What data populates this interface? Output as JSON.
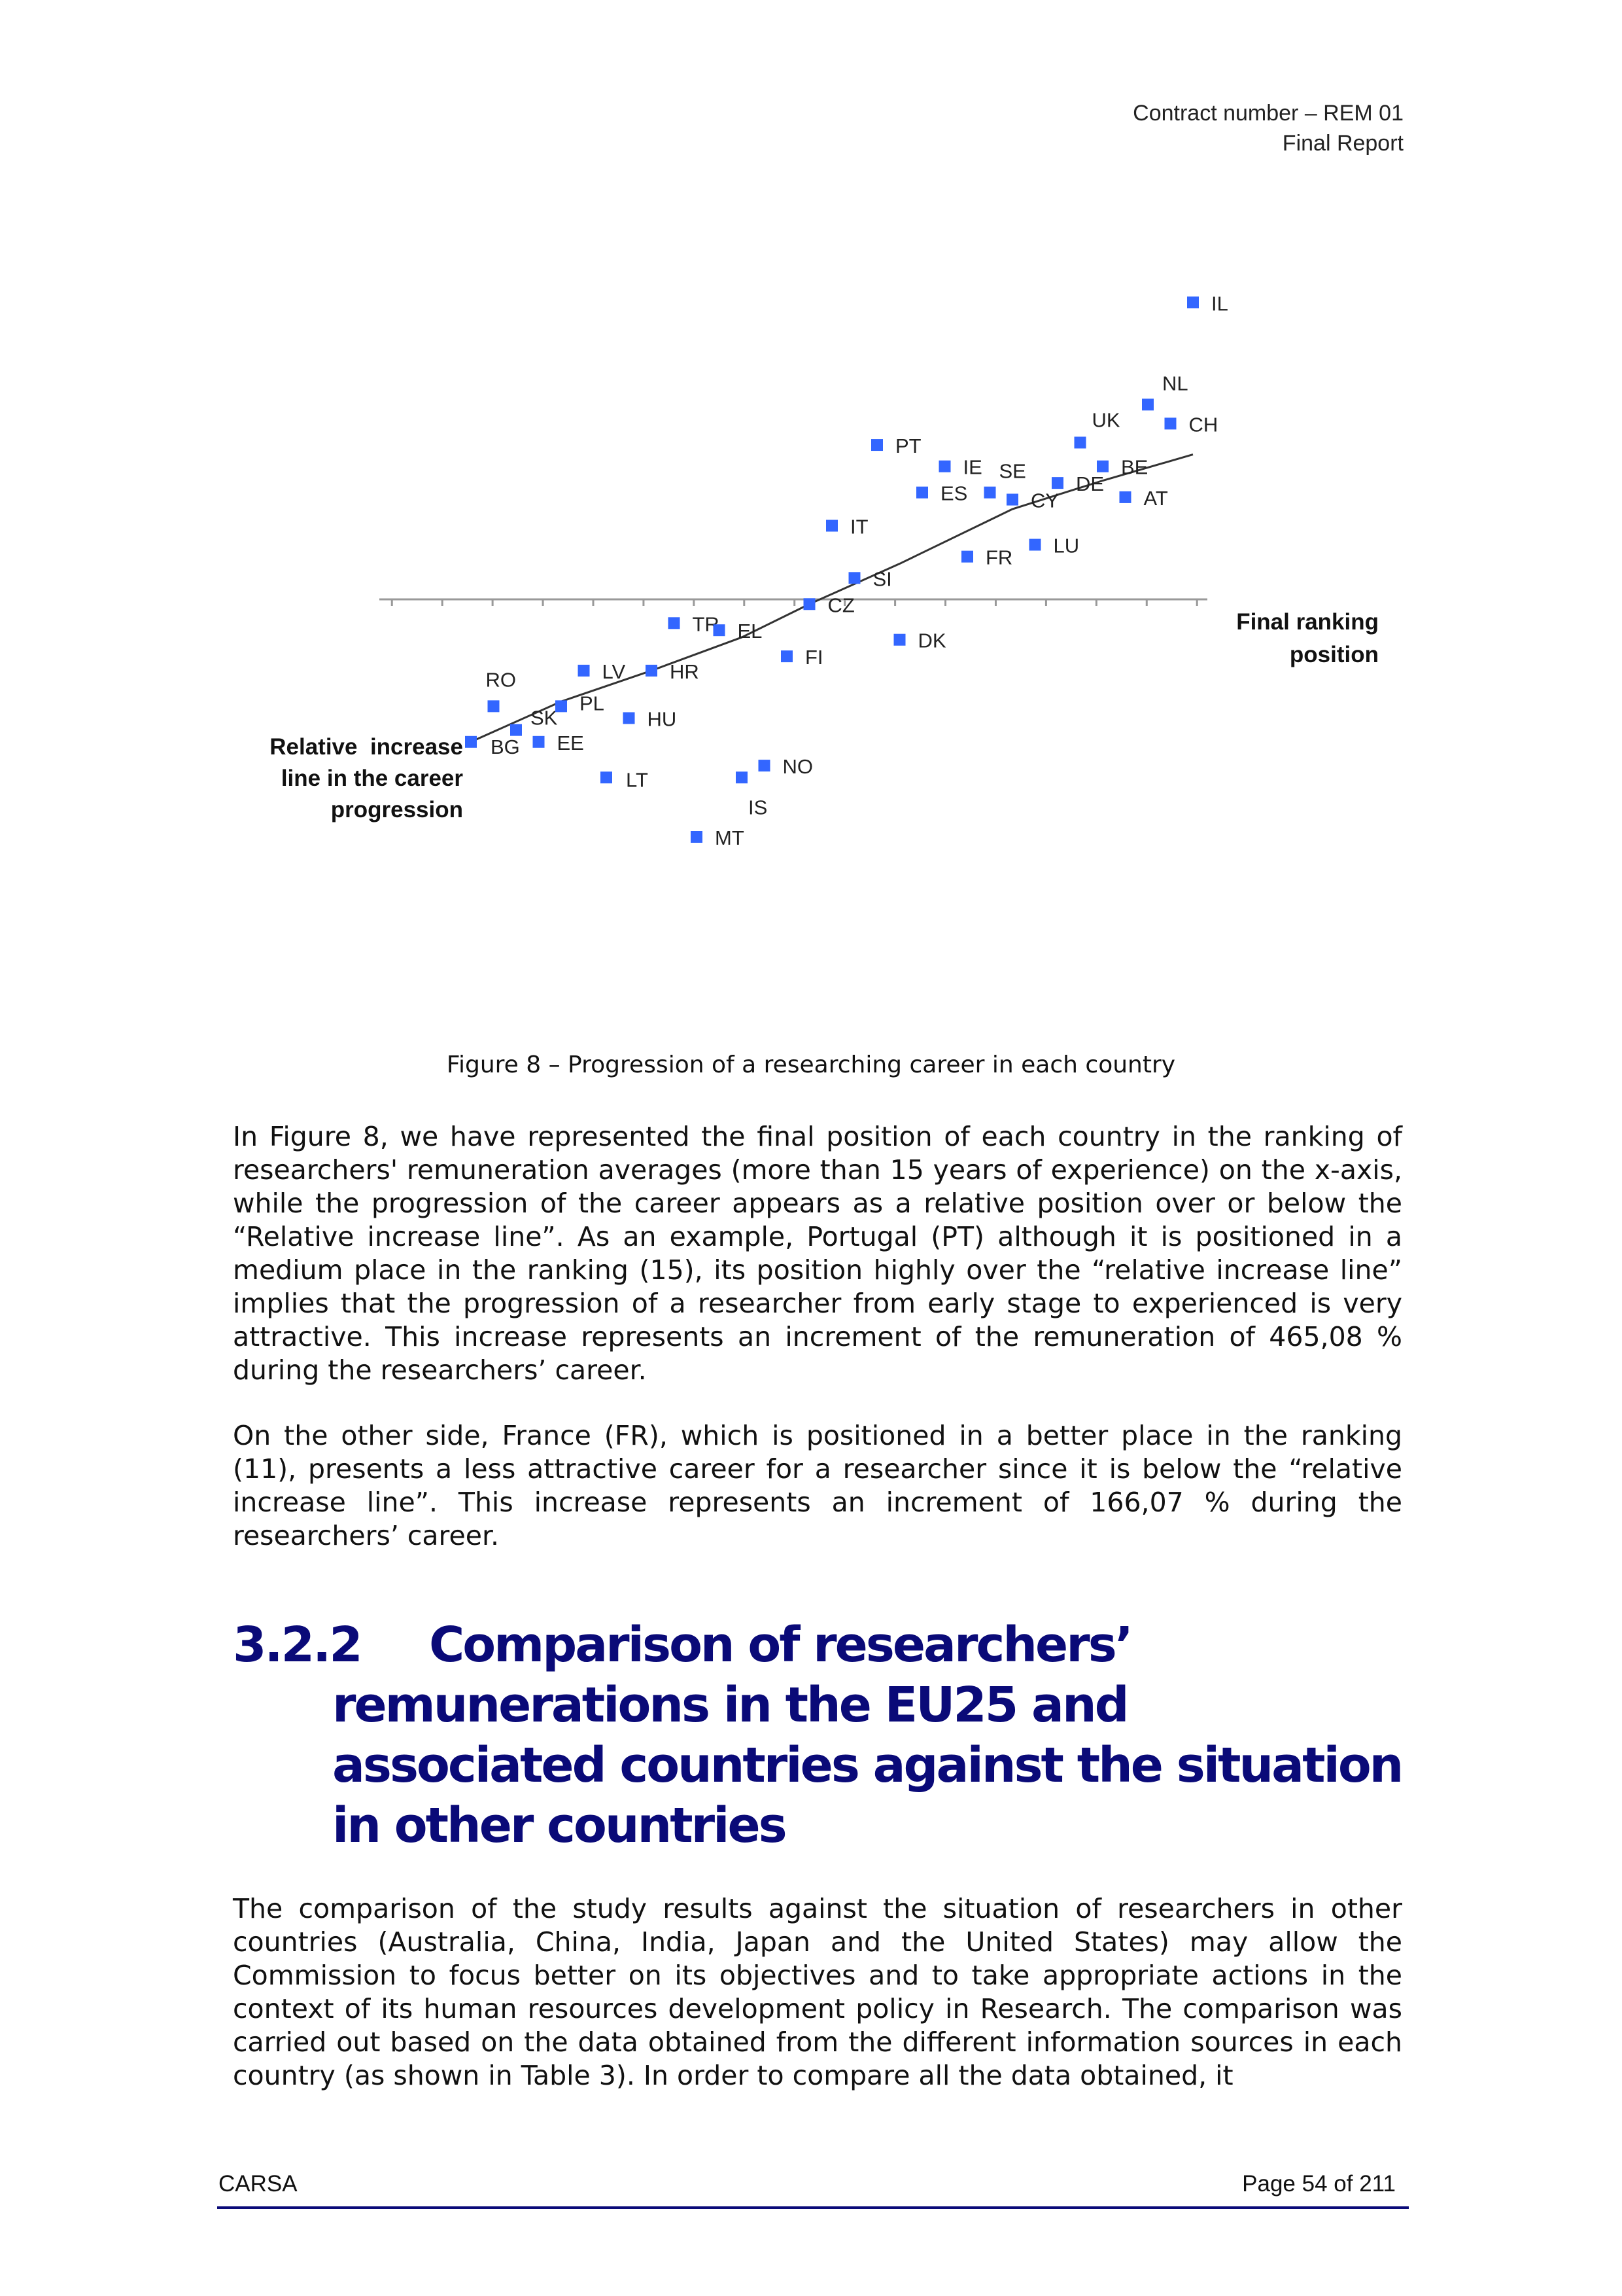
{
  "header": {
    "line1": "Contract number – REM 01",
    "line2": "Final Report"
  },
  "chart_data": {
    "type": "scatter",
    "title": "",
    "xlabel": "Final ranking position",
    "ylabel": "Relative increase line in the career progression",
    "xlim": [
      0.5,
      35.5
    ],
    "ylim": [
      -9.5,
      12.5
    ],
    "grid": false,
    "legend": "none",
    "point_color": "#3366ff",
    "points": [
      {
        "label": "BG",
        "x": 4,
        "y": -6
      },
      {
        "label": "RO",
        "x": 5,
        "y": -4.5
      },
      {
        "label": "SK",
        "x": 6,
        "y": -5.5
      },
      {
        "label": "EE",
        "x": 7,
        "y": -6
      },
      {
        "label": "PL",
        "x": 8,
        "y": -4.5
      },
      {
        "label": "LV",
        "x": 9,
        "y": -3
      },
      {
        "label": "LT",
        "x": 10,
        "y": -7.5
      },
      {
        "label": "HU",
        "x": 11,
        "y": -5
      },
      {
        "label": "HR",
        "x": 12,
        "y": -3
      },
      {
        "label": "TR",
        "x": 13,
        "y": -1
      },
      {
        "label": "MT",
        "x": 14,
        "y": -10
      },
      {
        "label": "EL",
        "x": 15,
        "y": -1.3
      },
      {
        "label": "IS",
        "x": 16,
        "y": -7.5
      },
      {
        "label": "NO",
        "x": 17,
        "y": -7
      },
      {
        "label": "FI",
        "x": 18,
        "y": -2.4
      },
      {
        "label": "CZ",
        "x": 19,
        "y": -0.2
      },
      {
        "label": "IT",
        "x": 20,
        "y": 3.1
      },
      {
        "label": "SI",
        "x": 21,
        "y": 0.9
      },
      {
        "label": "PT",
        "x": 22,
        "y": 6.5
      },
      {
        "label": "DK",
        "x": 23,
        "y": -1.7
      },
      {
        "label": "ES",
        "x": 24,
        "y": 4.5
      },
      {
        "label": "IE",
        "x": 25,
        "y": 5.6
      },
      {
        "label": "FR",
        "x": 26,
        "y": 1.8
      },
      {
        "label": "SE",
        "x": 27,
        "y": 4.5
      },
      {
        "label": "CY",
        "x": 28,
        "y": 4.2
      },
      {
        "label": "LU",
        "x": 29,
        "y": 2.3
      },
      {
        "label": "DE",
        "x": 30,
        "y": 4.9
      },
      {
        "label": "UK",
        "x": 31,
        "y": 6.6
      },
      {
        "label": "BE",
        "x": 32,
        "y": 5.6
      },
      {
        "label": "AT",
        "x": 33,
        "y": 4.3
      },
      {
        "label": "NL",
        "x": 34,
        "y": 8.2
      },
      {
        "label": "CH",
        "x": 35,
        "y": 7.4
      },
      {
        "label": "IL",
        "x": 36,
        "y": 12.5
      }
    ],
    "trend_line": {
      "x": [
        4,
        8,
        12,
        16,
        19,
        23,
        28,
        32,
        36
      ],
      "y": [
        -6,
        -4.3,
        -3,
        -1.6,
        -0.2,
        1.5,
        3.8,
        5,
        6.1
      ]
    }
  },
  "caption": "Figure 8 – Progression of a researching career in each country",
  "paragraphs": {
    "p1": "In Figure 8, we have represented the final position of each country in the ranking of researchers' remuneration averages (more than 15 years of experience) on the x-axis, while the progression of the career appears as a relative position over or below the “Relative increase line”. As an example, Portugal (PT) although it is positioned in a medium place in the ranking (15), its position highly over the “relative increase line” implies that the progression of a researcher from early stage to experienced is very attractive. This increase represents an increment of the remuneration of 465,08 % during the researchers’ career.",
    "p2": "On the other side, France (FR), which is positioned in a better place in the ranking (11), presents a less attractive career for a researcher since it is below the “relative increase line”. This increase represents an increment of 166,07 % during the researchers’ career.",
    "p3": "The comparison of the study results against the situation of researchers in other countries (Australia, China, India, Japan and the United States) may allow the Commission to focus better on its objectives and to take appropriate actions in the context of its human resources development policy in Research. The comparison was carried out based on the data obtained from the different information sources in each country (as shown in Table 3). In order to compare all the data obtained, it"
  },
  "section": {
    "number": "3.2.2",
    "title": "Comparison of researchers’ remunerations in the EU25 and associated countries against the situation in other countries"
  },
  "footer": {
    "left": "CARSA",
    "right": "Page 54 of 211"
  }
}
